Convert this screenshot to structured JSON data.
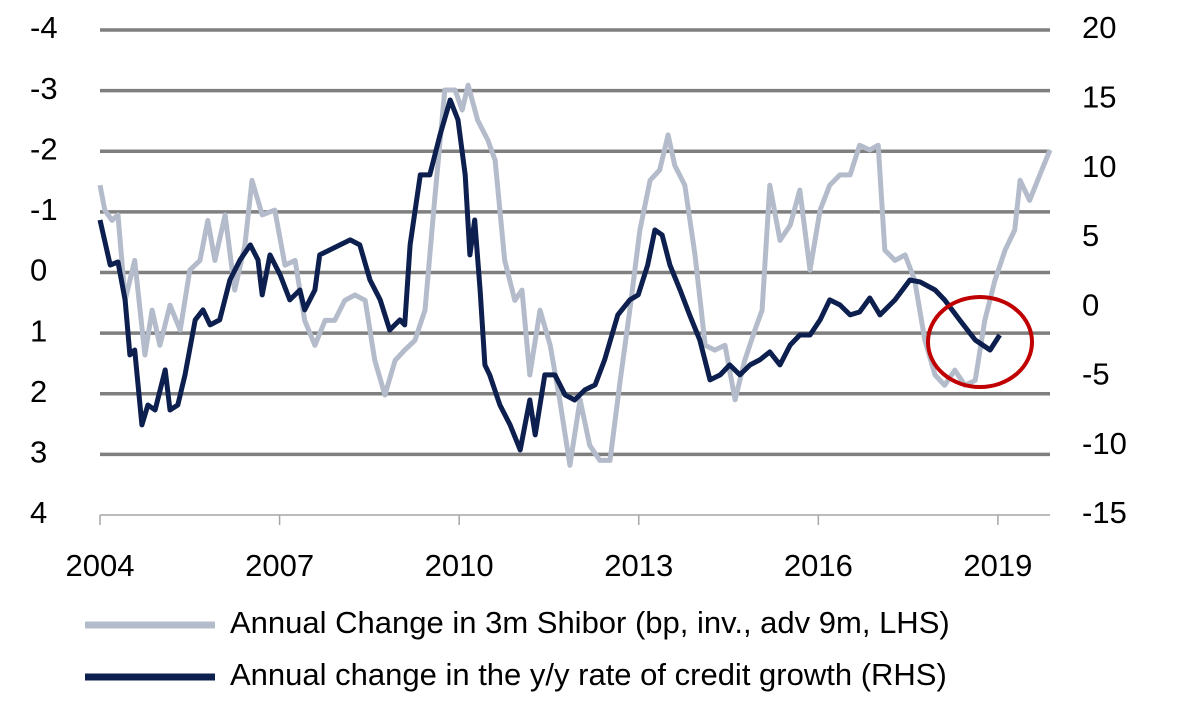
{
  "chart_data": {
    "type": "line",
    "xlim": [
      2004,
      2019.87
    ],
    "xticks": [
      2004,
      2007,
      2010,
      2013,
      2016,
      2019
    ],
    "ylim": [
      -4,
      4
    ],
    "inverted": true,
    "yticks": [
      -4,
      -3,
      -2,
      -1,
      0,
      1,
      2,
      3,
      4
    ],
    "y2lim": [
      -15,
      20
    ],
    "y2ticks": [
      -15,
      -10,
      -5,
      0,
      5,
      10,
      15,
      20
    ],
    "grid": true,
    "legend": "bottom",
    "series": [
      {
        "name": "Annual Change in 3m Shibor (bp, inv., adv 9m, LHS)",
        "color": "#b4bccb",
        "x": [
          2004.0,
          2004.08,
          2004.2,
          2004.3,
          2004.42,
          2004.58,
          2004.75,
          2004.87,
          2005.0,
          2005.17,
          2005.34,
          2005.5,
          2005.67,
          2005.8,
          2005.92,
          2006.09,
          2006.25,
          2006.42,
          2006.54,
          2006.71,
          2006.92,
          2007.09,
          2007.26,
          2007.42,
          2007.59,
          2007.76,
          2007.92,
          2008.09,
          2008.26,
          2008.43,
          2008.59,
          2008.76,
          2008.93,
          2009.09,
          2009.26,
          2009.43,
          2009.59,
          2009.76,
          2009.93,
          2010.05,
          2010.15,
          2010.31,
          2010.48,
          2010.6,
          2010.76,
          2010.93,
          2011.05,
          2011.18,
          2011.35,
          2011.52,
          2011.68,
          2011.85,
          2012.02,
          2012.18,
          2012.35,
          2012.52,
          2012.69,
          2012.85,
          2013.02,
          2013.19,
          2013.35,
          2013.49,
          2013.6,
          2013.77,
          2013.94,
          2014.11,
          2014.27,
          2014.44,
          2014.61,
          2014.77,
          2014.94,
          2015.06,
          2015.19,
          2015.36,
          2015.53,
          2015.69,
          2015.86,
          2016.03,
          2016.19,
          2016.36,
          2016.53,
          2016.69,
          2016.86,
          2017.0,
          2017.11,
          2017.28,
          2017.45,
          2017.61,
          2017.78,
          2017.95,
          2018.11,
          2018.28,
          2018.45,
          2018.62,
          2018.78,
          2018.95,
          2019.12,
          2019.28,
          2019.37,
          2019.53,
          2019.7,
          2019.87
        ],
        "values": [
          -1.44,
          -1.03,
          -0.86,
          -0.95,
          0.46,
          -0.2,
          1.36,
          0.62,
          1.2,
          0.54,
          0.95,
          -0.04,
          -0.2,
          -0.86,
          -0.2,
          -0.95,
          0.29,
          -0.45,
          -1.52,
          -0.95,
          -1.03,
          -0.12,
          -0.2,
          0.79,
          1.2,
          0.79,
          0.79,
          0.46,
          0.37,
          0.46,
          1.45,
          2.02,
          1.45,
          1.28,
          1.12,
          0.62,
          -1.19,
          -3.01,
          -3.01,
          -2.68,
          -3.09,
          -2.51,
          -2.18,
          -1.85,
          -0.2,
          0.46,
          0.29,
          1.69,
          0.62,
          1.2,
          2.1,
          3.18,
          2.1,
          2.85,
          3.1,
          3.1,
          1.78,
          0.62,
          -0.7,
          -1.52,
          -1.69,
          -2.27,
          -1.77,
          -1.44,
          -0.29,
          1.2,
          1.28,
          1.2,
          2.1,
          1.45,
          0.95,
          0.62,
          -1.44,
          -0.53,
          -0.78,
          -1.36,
          -0.04,
          -1.03,
          -1.44,
          -1.61,
          -1.61,
          -2.1,
          -2.02,
          -2.1,
          -0.37,
          -0.2,
          -0.29,
          0.13,
          1.12,
          1.69,
          1.86,
          1.61,
          1.86,
          1.78,
          0.79,
          0.13,
          -0.37,
          -0.7,
          -1.52,
          -1.19,
          -1.61,
          -2.02
        ]
      },
      {
        "name": "Annual change in the y/y rate of credit growth (RHS)",
        "color": "#0d1f4e",
        "axis": "y2",
        "x": [
          2004.0,
          2004.17,
          2004.3,
          2004.42,
          2004.5,
          2004.58,
          2004.7,
          2004.8,
          2004.92,
          2005.09,
          2005.17,
          2005.3,
          2005.42,
          2005.59,
          2005.72,
          2005.84,
          2006.0,
          2006.17,
          2006.34,
          2006.51,
          2006.64,
          2006.71,
          2006.84,
          2007.01,
          2007.17,
          2007.34,
          2007.42,
          2007.59,
          2007.67,
          2007.84,
          2008.01,
          2008.18,
          2008.34,
          2008.51,
          2008.68,
          2008.84,
          2009.01,
          2009.09,
          2009.18,
          2009.35,
          2009.51,
          2009.68,
          2009.85,
          2009.98,
          2010.1,
          2010.18,
          2010.26,
          2010.35,
          2010.43,
          2010.51,
          2010.68,
          2010.85,
          2011.02,
          2011.18,
          2011.27,
          2011.43,
          2011.6,
          2011.77,
          2011.93,
          2012.1,
          2012.27,
          2012.43,
          2012.65,
          2012.85,
          2012.99,
          2013.15,
          2013.27,
          2013.39,
          2013.52,
          2013.69,
          2013.85,
          2014.02,
          2014.19,
          2014.36,
          2014.52,
          2014.69,
          2014.86,
          2015.02,
          2015.19,
          2015.36,
          2015.53,
          2015.69,
          2015.86,
          2016.03,
          2016.19,
          2016.36,
          2016.53,
          2016.69,
          2016.86,
          2017.03,
          2017.28,
          2017.53,
          2017.7,
          2017.95,
          2018.11,
          2018.36,
          2018.62,
          2018.87,
          2019.03
        ],
        "values": [
          6.29,
          3.04,
          3.26,
          0.52,
          -3.45,
          -3.09,
          -8.5,
          -7.06,
          -7.42,
          -4.53,
          -7.42,
          -7.06,
          -4.89,
          -0.92,
          -0.2,
          -1.28,
          -0.92,
          1.96,
          3.41,
          4.49,
          3.41,
          0.88,
          3.77,
          2.32,
          0.52,
          1.24,
          -0.2,
          1.24,
          3.77,
          4.13,
          4.49,
          4.85,
          4.49,
          1.96,
          0.52,
          -1.65,
          -0.92,
          -1.28,
          4.49,
          9.54,
          9.54,
          12.42,
          14.95,
          13.51,
          9.54,
          3.77,
          6.29,
          1.24,
          -4.17,
          -4.89,
          -7.06,
          -8.5,
          -10.3,
          -6.7,
          -9.22,
          -4.89,
          -4.89,
          -6.33,
          -6.7,
          -5.97,
          -5.61,
          -3.81,
          -0.56,
          0.52,
          0.88,
          3.04,
          5.57,
          5.21,
          3.04,
          1.24,
          -0.56,
          -2.37,
          -5.25,
          -4.89,
          -4.17,
          -4.89,
          -4.17,
          -3.81,
          -3.23,
          -4.17,
          -2.73,
          -2.01,
          -2.01,
          -0.92,
          0.52,
          0.16,
          -0.56,
          -0.35,
          0.66,
          -0.56,
          0.52,
          1.96,
          1.82,
          1.24,
          0.52,
          -0.92,
          -2.37,
          -3.09,
          -2.01
        ]
      }
    ]
  }
}
